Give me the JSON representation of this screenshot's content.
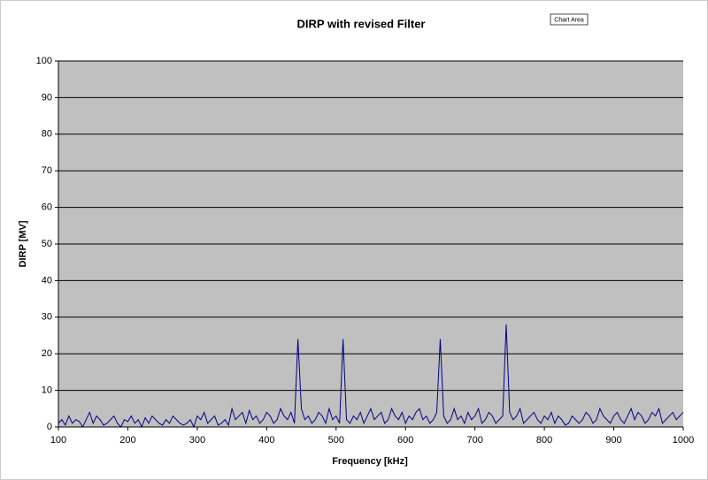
{
  "chart_data": {
    "type": "line",
    "title": "DIRP with revised Filter",
    "tooltip": "Chart Area",
    "x_label": "Frequency [kHz]",
    "y_label": "DIRP [MV]",
    "x": [
      100,
      105,
      110,
      115,
      120,
      125,
      130,
      135,
      140,
      145,
      150,
      155,
      160,
      165,
      170,
      175,
      180,
      185,
      190,
      195,
      200,
      205,
      210,
      215,
      220,
      225,
      230,
      235,
      240,
      245,
      250,
      255,
      260,
      265,
      270,
      275,
      280,
      285,
      290,
      295,
      300,
      305,
      310,
      315,
      320,
      325,
      330,
      335,
      340,
      345,
      350,
      355,
      360,
      365,
      370,
      375,
      380,
      385,
      390,
      395,
      400,
      405,
      410,
      415,
      420,
      425,
      430,
      435,
      440,
      445,
      450,
      455,
      460,
      465,
      470,
      475,
      480,
      485,
      490,
      495,
      500,
      505,
      510,
      515,
      520,
      525,
      530,
      535,
      540,
      545,
      550,
      555,
      560,
      565,
      570,
      575,
      580,
      585,
      590,
      595,
      600,
      605,
      610,
      615,
      620,
      625,
      630,
      635,
      640,
      645,
      650,
      655,
      660,
      665,
      670,
      675,
      680,
      685,
      690,
      695,
      700,
      705,
      710,
      715,
      720,
      725,
      730,
      735,
      740,
      745,
      750,
      755,
      760,
      765,
      770,
      775,
      780,
      785,
      790,
      795,
      800,
      805,
      810,
      815,
      820,
      825,
      830,
      835,
      840,
      845,
      850,
      855,
      860,
      865,
      870,
      875,
      880,
      885,
      890,
      895,
      900,
      905,
      910,
      915,
      920,
      925,
      930,
      935,
      940,
      945,
      950,
      955,
      960,
      965,
      970,
      975,
      980,
      985,
      990,
      995,
      1000
    ],
    "series": [
      {
        "name": "DIRP",
        "color": "#000080",
        "values": [
          1,
          2,
          0.5,
          3,
          1,
          2,
          1.5,
          0,
          2,
          4,
          1,
          3,
          2,
          0.5,
          1,
          2,
          3,
          1,
          0,
          2,
          1.5,
          3,
          1,
          2,
          0,
          2.5,
          1,
          3,
          2,
          1,
          0.5,
          2,
          1,
          3,
          2,
          1,
          0.5,
          1,
          2,
          0,
          3,
          2,
          4,
          1,
          2,
          3,
          0.5,
          1,
          2,
          0.5,
          5,
          2,
          3,
          4,
          1,
          4.5,
          2,
          3,
          1,
          2,
          4,
          3,
          1,
          2,
          5,
          3,
          2,
          4,
          1,
          24,
          5,
          2,
          3,
          1,
          2,
          4,
          3,
          1,
          5,
          2,
          3,
          1,
          24,
          2,
          1,
          3,
          2,
          4,
          1,
          3,
          5,
          2,
          3,
          4,
          1,
          2,
          5,
          3,
          2,
          4,
          1,
          3,
          2,
          4,
          5,
          2,
          3,
          1,
          2,
          4,
          24,
          3,
          1,
          2,
          5,
          2,
          3,
          1,
          4,
          2,
          3,
          5,
          1,
          2,
          4,
          3,
          1,
          2,
          3,
          28,
          4,
          2,
          3,
          5,
          1,
          2,
          3,
          4,
          2,
          1,
          3,
          2,
          4,
          1,
          3,
          2,
          0.5,
          1,
          3,
          2,
          1,
          2,
          4,
          3,
          1,
          2,
          5,
          3,
          2,
          1,
          3,
          4,
          2,
          1,
          3,
          5,
          2,
          4,
          3,
          1,
          2,
          4,
          3,
          5,
          1,
          2,
          3,
          4,
          2,
          3,
          4
        ]
      }
    ],
    "xlim": [
      100,
      1000
    ],
    "xticks": [
      100,
      200,
      300,
      400,
      500,
      600,
      700,
      800,
      900,
      1000
    ],
    "ylim": [
      0,
      100
    ],
    "yticks": [
      0,
      10,
      20,
      30,
      40,
      50,
      60,
      70,
      80,
      90,
      100
    ],
    "grid": true
  }
}
